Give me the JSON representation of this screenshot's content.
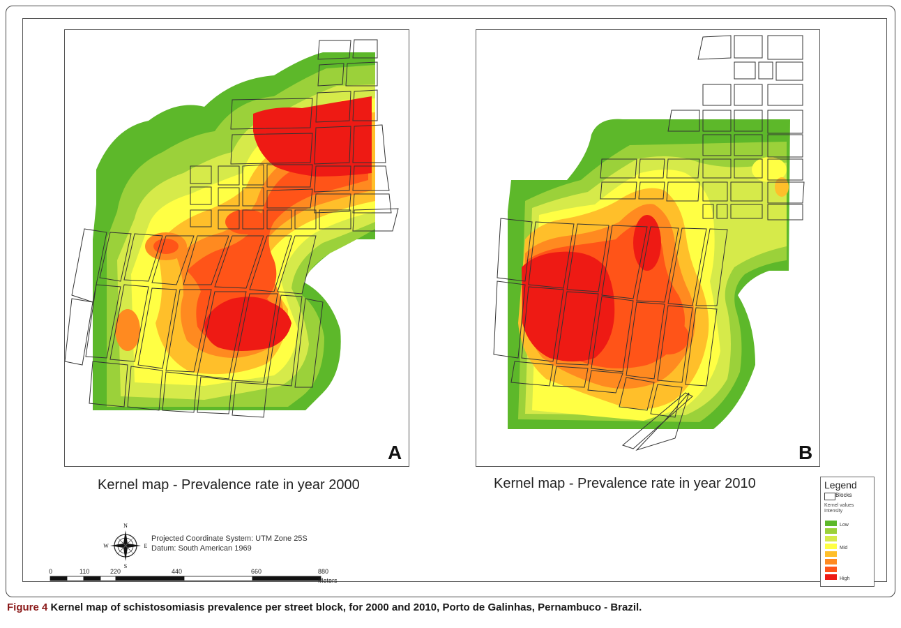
{
  "panels": [
    {
      "letter": "A",
      "title": "Kernel map - Prevalence rate in year 2000"
    },
    {
      "letter": "B",
      "title": "Kernel map - Prevalence rate in year 2010"
    }
  ],
  "legend": {
    "title": "Legend",
    "blocks_label": "Blocks",
    "kernel_label": "Kernel values",
    "intensity_label": "Intensity",
    "classes": [
      {
        "color": "#5db82a",
        "label": "Low"
      },
      {
        "color": "#9bd13a",
        "label": ""
      },
      {
        "color": "#d6ea4a",
        "label": ""
      },
      {
        "color": "#ffff44",
        "label": "Mid"
      },
      {
        "color": "#ffbf2a",
        "label": ""
      },
      {
        "color": "#ff8a20",
        "label": ""
      },
      {
        "color": "#ff5418",
        "label": ""
      },
      {
        "color": "#ee1a14",
        "label": "High"
      }
    ]
  },
  "projection": {
    "line1": "Projected Coordinate System: UTM Zone 25S",
    "line2": "Datum: South American 1969"
  },
  "compass": {
    "n": "N",
    "s": "S",
    "e": "E",
    "w": "W"
  },
  "scale": {
    "ticks": [
      "0",
      "110",
      "220",
      "440",
      "660",
      "880"
    ],
    "unit": "Meters"
  },
  "caption": {
    "label": "Figure 4",
    "text": "Kernel map of schistosomiasis prevalence per street block, for 2000 and 2010, Porto de Galinhas, Pernambuco - Brazil."
  }
}
